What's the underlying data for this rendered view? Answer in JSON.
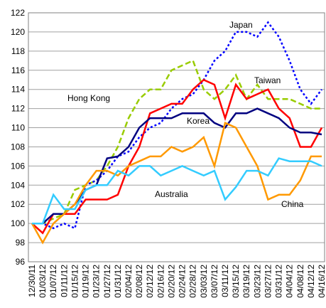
{
  "chart_data": {
    "type": "line",
    "categories": [
      "12/30/11",
      "01/03/12",
      "01/07/12",
      "01/11/12",
      "01/15/12",
      "01/19/12",
      "01/23/12",
      "01/27/12",
      "01/31/12",
      "02/04/12",
      "02/08/12",
      "02/12/12",
      "02/16/12",
      "02/20/12",
      "02/24/12",
      "02/28/12",
      "03/03/12",
      "03/07/12",
      "03/11/12",
      "03/15/12",
      "03/19/12",
      "03/23/12",
      "03/27/12",
      "03/31/12",
      "04/04/12",
      "04/08/12",
      "04/12/12",
      "04/16/12"
    ],
    "series": [
      {
        "name": "Hong Kong",
        "color": "#99cc00",
        "dash": "8,4",
        "values": [
          100,
          100,
          100.5,
          101,
          103.5,
          104,
          104.5,
          106,
          108,
          111,
          113,
          114,
          114,
          116,
          116.5,
          117,
          114,
          113,
          114,
          115.5,
          113,
          114.5,
          113,
          113,
          113,
          112.5,
          112,
          112
        ]
      },
      {
        "name": "Japan",
        "color": "#0000ff",
        "dash": "3,3",
        "values": [
          100,
          100,
          99.5,
          100,
          99.5,
          104,
          104.5,
          105.5,
          107,
          107.5,
          109,
          110,
          110.5,
          112,
          113,
          113.5,
          115,
          117,
          118,
          120,
          120,
          119.5,
          121,
          119.5,
          117,
          114,
          112.5,
          114
        ]
      },
      {
        "name": "Taiwan",
        "color": "#ff0000",
        "dash": "none",
        "values": [
          100,
          99,
          101,
          101,
          101,
          102.5,
          102.5,
          102.5,
          103,
          106,
          108,
          111.5,
          112,
          112.5,
          112.5,
          114,
          115,
          114.5,
          111,
          114.5,
          113,
          113.5,
          114,
          112,
          111,
          108,
          108,
          110
        ]
      },
      {
        "name": "Korea",
        "color": "#000080",
        "dash": "none",
        "values": [
          100,
          100,
          101,
          101,
          102,
          103.5,
          104,
          106.8,
          107,
          108,
          110,
          111,
          111,
          111,
          111.5,
          111.5,
          111.5,
          110.5,
          110,
          111.5,
          111.5,
          112,
          111.5,
          111,
          110,
          109.5,
          109.5,
          109.3
        ]
      },
      {
        "name": "China",
        "color": "#ff9900",
        "dash": "none",
        "values": [
          100,
          98,
          100,
          101,
          102,
          104,
          105.5,
          105.5,
          105,
          106,
          106.5,
          107,
          107,
          108,
          107.5,
          108,
          109,
          106,
          110.5,
          110,
          108,
          106,
          102.5,
          103,
          103,
          104.5,
          107,
          107
        ]
      },
      {
        "name": "Australia",
        "color": "#33ccff",
        "dash": "none",
        "values": [
          100,
          100,
          103,
          101.5,
          101.5,
          103.5,
          104,
          104,
          105.5,
          105,
          106,
          106,
          105,
          105.5,
          106,
          105.5,
          105,
          105.5,
          102.5,
          103.8,
          105.5,
          105.5,
          105,
          106.8,
          106.5,
          106.5,
          106.5,
          106
        ]
      }
    ],
    "ylim": [
      96,
      122
    ],
    "yticks": [
      96,
      98,
      100,
      102,
      104,
      106,
      108,
      110,
      112,
      114,
      116,
      118,
      120,
      122
    ],
    "grid": true
  }
}
